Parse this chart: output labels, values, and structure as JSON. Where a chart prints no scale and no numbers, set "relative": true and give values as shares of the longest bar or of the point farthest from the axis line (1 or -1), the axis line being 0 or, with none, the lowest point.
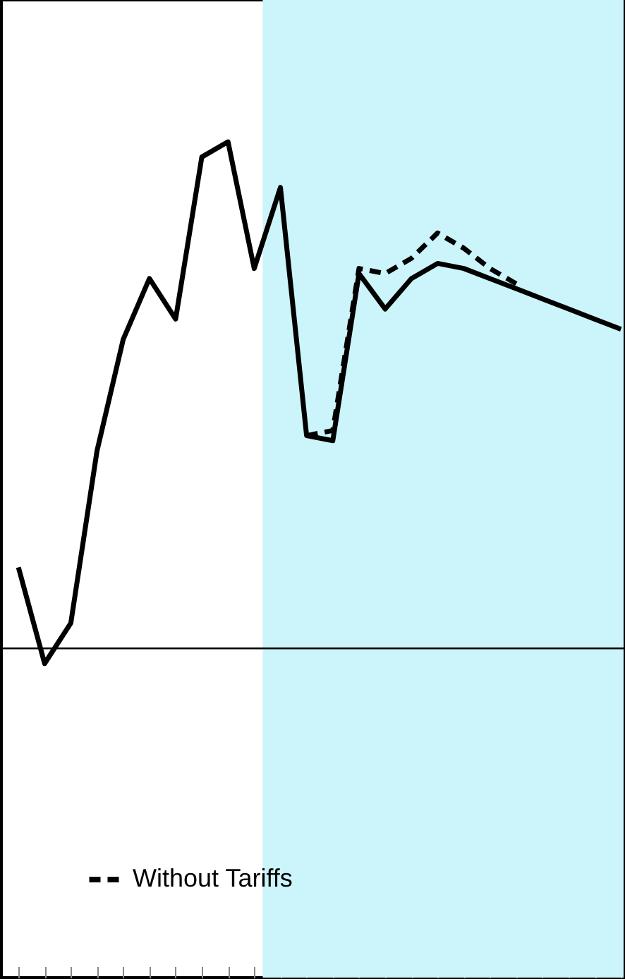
{
  "chart_data": {
    "type": "line",
    "relative": true,
    "categories": [
      null,
      null,
      null,
      null,
      null,
      null,
      null,
      null,
      null,
      null,
      null,
      null,
      null,
      null,
      null,
      null,
      null,
      null,
      null,
      null,
      null,
      null,
      null,
      null
    ],
    "series": [
      {
        "color": "#000000",
        "line_style": "solid",
        "values": [
          0.16,
          -0.03,
          0.05,
          0.39,
          0.61,
          0.73,
          0.65,
          0.97,
          1.0,
          0.75,
          0.91,
          0.42,
          0.41,
          0.74,
          0.67,
          0.73,
          0.76,
          0.75,
          0.73,
          0.71,
          0.69,
          0.67,
          0.65,
          0.63
        ]
      },
      {
        "name": "Without Tariffs",
        "color": "#000000",
        "line_style": "dashed",
        "values": [
          null,
          null,
          null,
          null,
          null,
          null,
          null,
          null,
          null,
          null,
          null,
          0.42,
          0.43,
          0.75,
          0.74,
          0.77,
          0.82,
          0.79,
          0.75,
          0.72,
          null,
          null,
          null,
          null
        ]
      }
    ],
    "legend": "bottom left",
    "grid": false,
    "tick_labels": false,
    "marker": "none"
  }
}
